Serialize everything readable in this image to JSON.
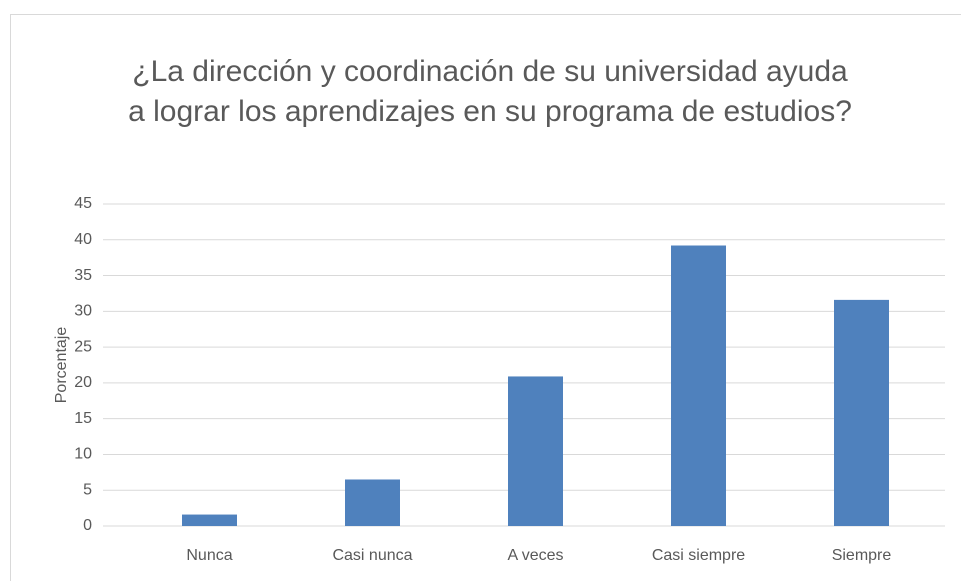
{
  "chart_data": {
    "type": "bar",
    "title": "¿La dirección y coordinación de su universidad ayuda a lograr los aprendizajes en su programa de estudios?",
    "y_label": "Porcentaje",
    "categories": [
      "Nunca",
      "Casi nunca",
      "A veces",
      "Casi siempre",
      "Siempre"
    ],
    "values": [
      1.6,
      6.5,
      20.9,
      39.2,
      31.6
    ],
    "color": "#4f81bd",
    "ylim": [
      0,
      45
    ],
    "yticks": [
      0,
      5,
      10,
      15,
      20,
      25,
      30,
      35,
      40,
      45
    ],
    "grid": true
  }
}
